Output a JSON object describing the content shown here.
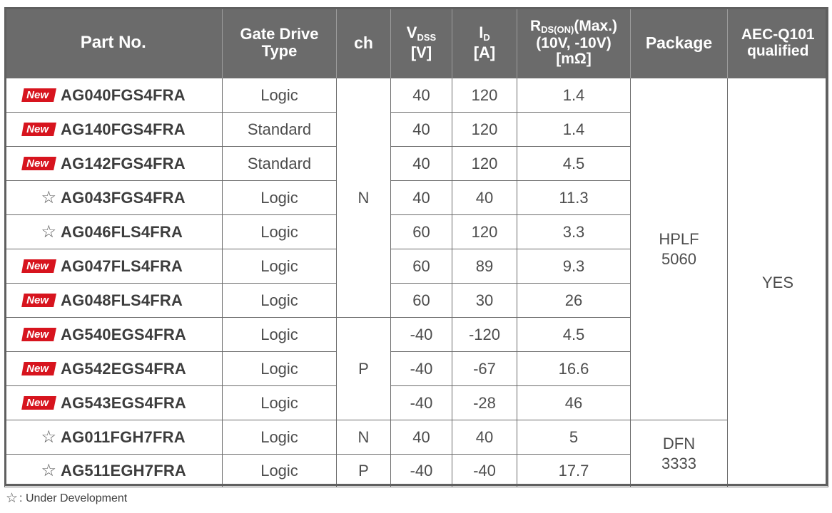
{
  "header": {
    "part": "Part No.",
    "gate_line1": "Gate Drive",
    "gate_line2": "Type",
    "ch": "ch",
    "vdss_sym": "V",
    "vdss_sub": "DSS",
    "vdss_unit": "[V]",
    "id_sym": "I",
    "id_sub": "D",
    "id_unit": "[A]",
    "r_sym": "R",
    "r_sub": "DS(ON)",
    "r_max": "(Max.)",
    "r_cond": "(10V, -10V)",
    "r_unit": "[mΩ]",
    "package": "Package",
    "aec_line1": "AEC-Q101",
    "aec_line2": "qualified"
  },
  "new_label": "New",
  "star_glyph": "☆",
  "rows": [
    {
      "marker": "new",
      "part": "AG040FGS4FRA",
      "gate": "Logic",
      "v": "40",
      "i": "120",
      "r": "1.4"
    },
    {
      "marker": "new",
      "part": "AG140FGS4FRA",
      "gate": "Standard",
      "v": "40",
      "i": "120",
      "r": "1.4"
    },
    {
      "marker": "new",
      "part": "AG142FGS4FRA",
      "gate": "Standard",
      "v": "40",
      "i": "120",
      "r": "4.5"
    },
    {
      "marker": "star",
      "part": "AG043FGS4FRA",
      "gate": "Logic",
      "v": "40",
      "i": "40",
      "r": "11.3"
    },
    {
      "marker": "star",
      "part": "AG046FLS4FRA",
      "gate": "Logic",
      "v": "60",
      "i": "120",
      "r": "3.3"
    },
    {
      "marker": "new",
      "part": "AG047FLS4FRA",
      "gate": "Logic",
      "v": "60",
      "i": "89",
      "r": "9.3"
    },
    {
      "marker": "new",
      "part": "AG048FLS4FRA",
      "gate": "Logic",
      "v": "60",
      "i": "30",
      "r": "26"
    },
    {
      "marker": "new",
      "part": "AG540EGS4FRA",
      "gate": "Logic",
      "v": "-40",
      "i": "-120",
      "r": "4.5"
    },
    {
      "marker": "new",
      "part": "AG542EGS4FRA",
      "gate": "Logic",
      "v": "-40",
      "i": "-67",
      "r": "16.6"
    },
    {
      "marker": "new",
      "part": "AG543EGS4FRA",
      "gate": "Logic",
      "v": "-40",
      "i": "-28",
      "r": "46"
    },
    {
      "marker": "star",
      "part": "AG011FGH7FRA",
      "gate": "Logic",
      "v": "40",
      "i": "40",
      "r": "5"
    },
    {
      "marker": "star",
      "part": "AG511EGH7FRA",
      "gate": "Logic",
      "v": "-40",
      "i": "-40",
      "r": "17.7"
    }
  ],
  "merged": {
    "ch_n1": "N",
    "ch_p1": "P",
    "ch_n2": "N",
    "ch_p2": "P",
    "pkg1_line1": "HPLF",
    "pkg1_line2": "5060",
    "pkg2_line1": "DFN",
    "pkg2_line2": "3333",
    "aec": "YES"
  },
  "footnote": ": Under Development",
  "colors": {
    "header_bg": "#6b6b6b",
    "new_badge": "#d7141e",
    "text": "#4d4d4d"
  }
}
